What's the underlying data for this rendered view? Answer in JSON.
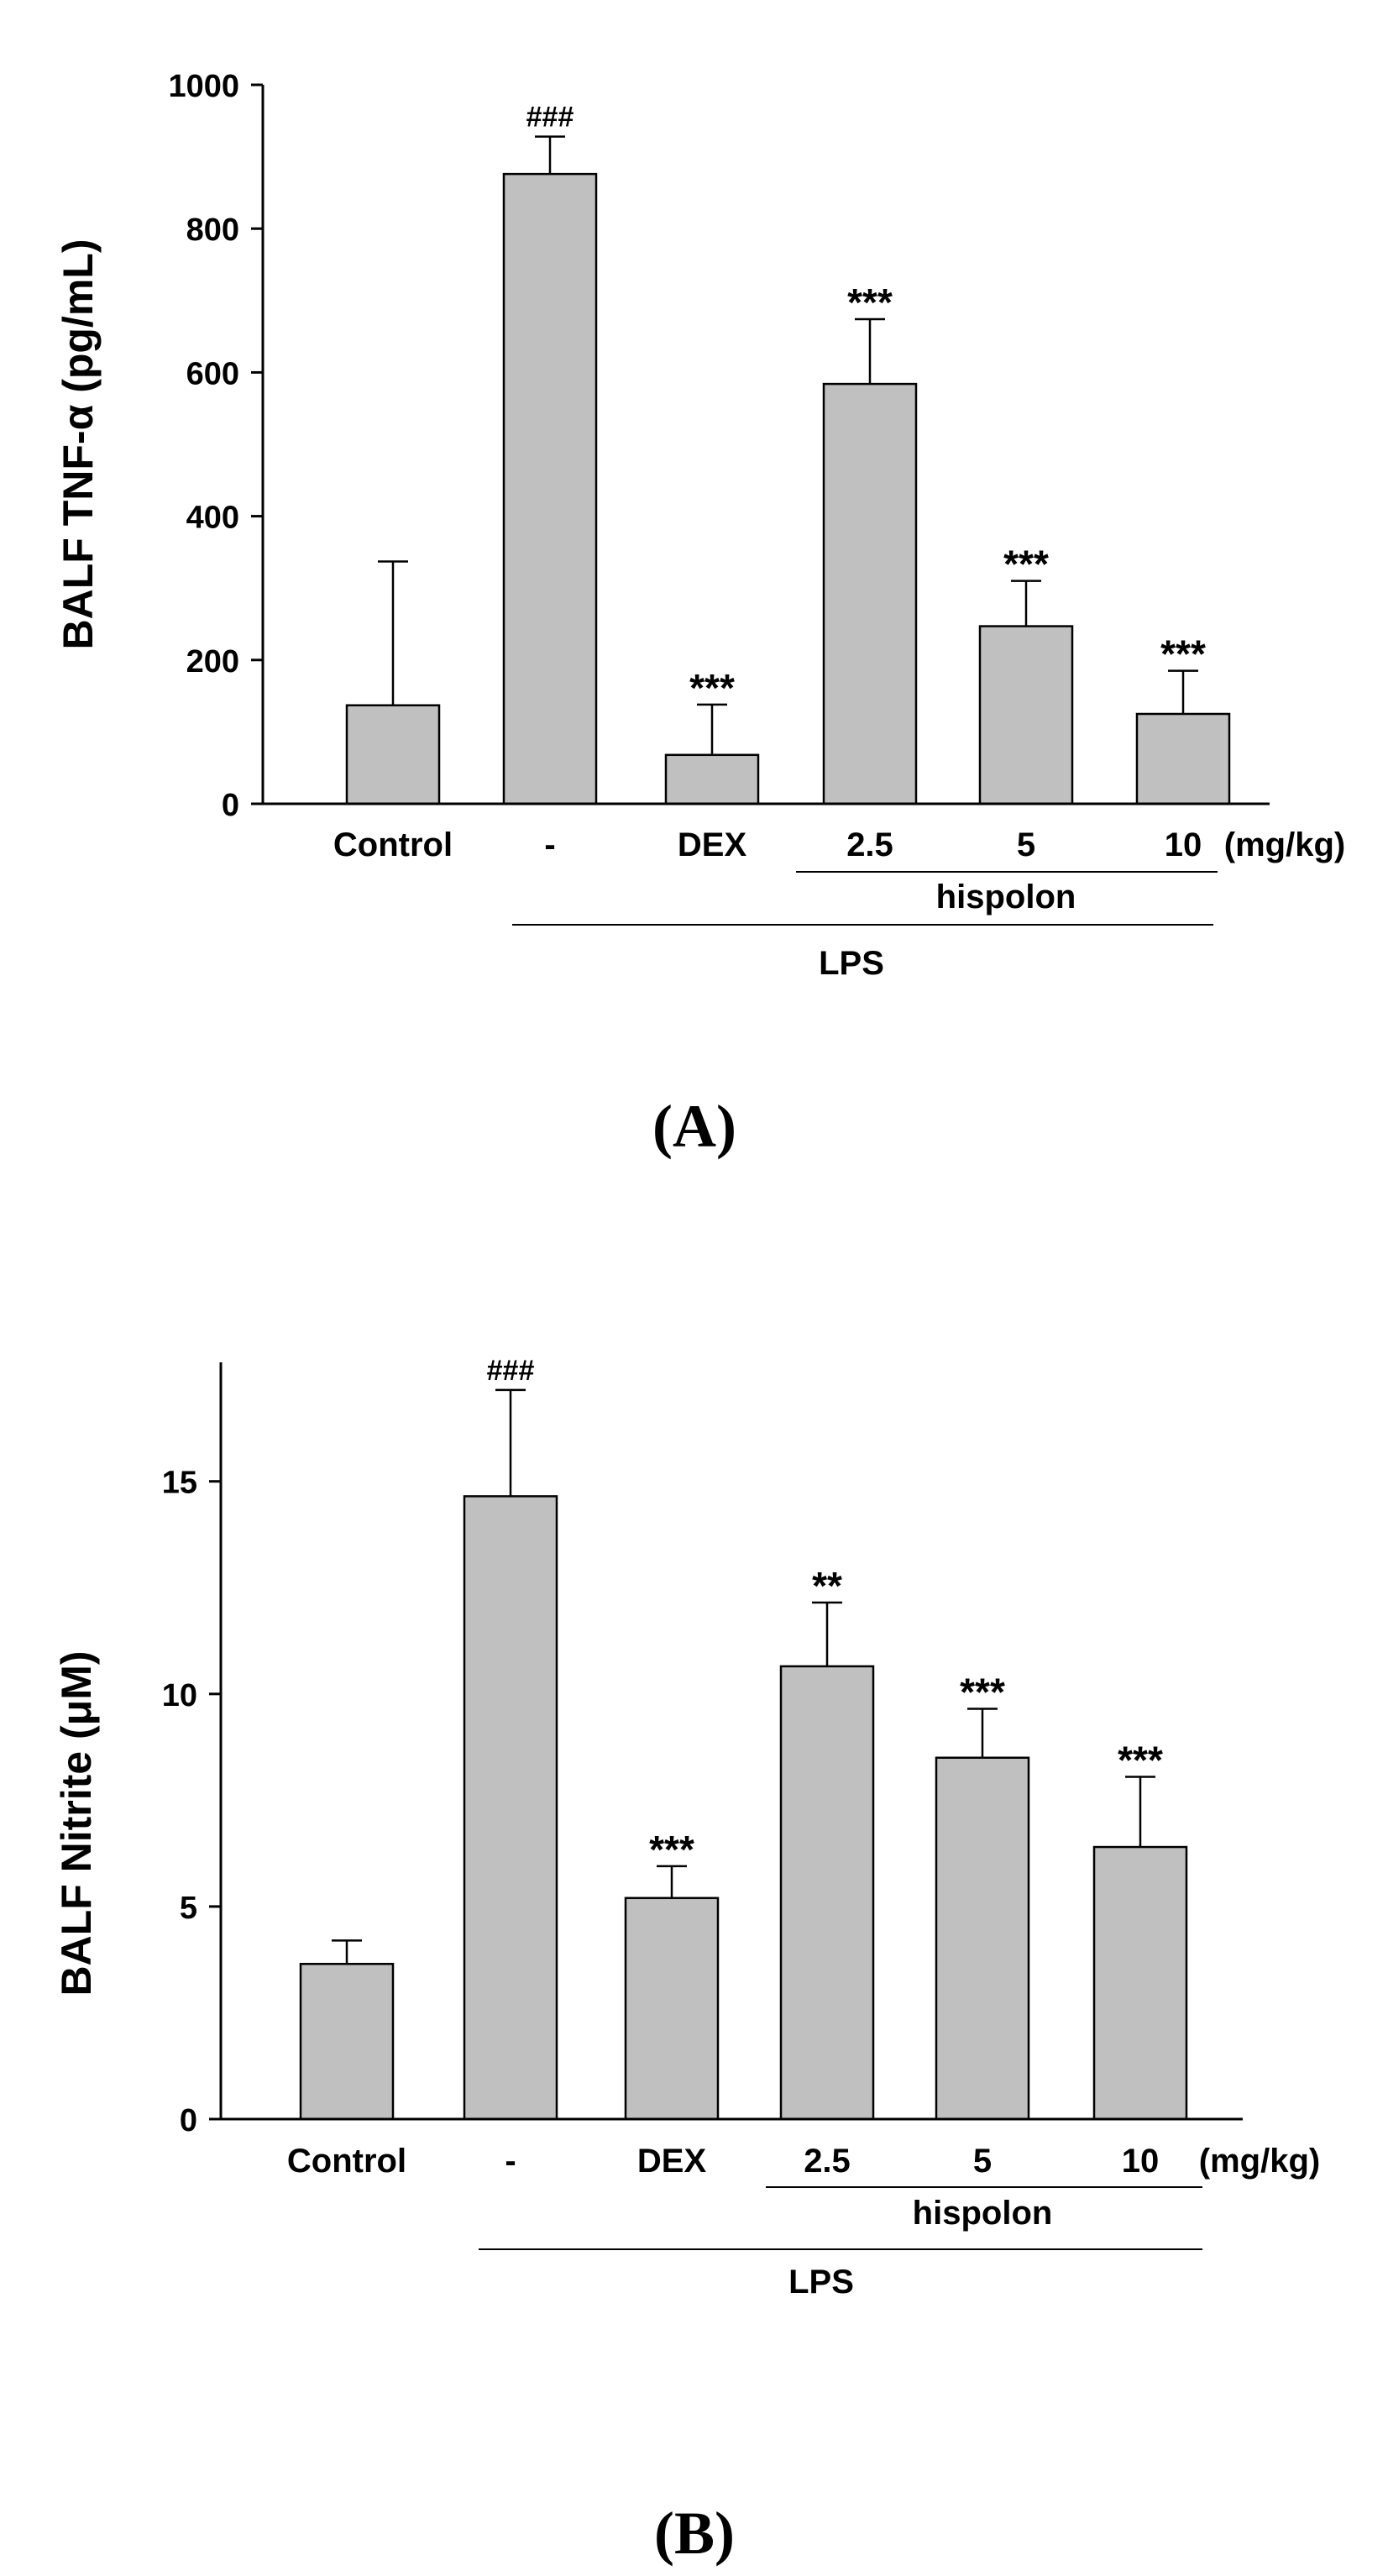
{
  "chart_data": [
    {
      "type": "bar",
      "panel_label": "(A)",
      "ylabel": "BALF TNF-α (pg/mL)",
      "ylim": [
        0,
        1000
      ],
      "yticks": [
        0,
        200,
        400,
        600,
        800,
        1000
      ],
      "categories": [
        "Control",
        "-",
        "DEX",
        "2.5",
        "5",
        "10"
      ],
      "values": [
        137,
        876,
        68,
        584,
        247,
        125
      ],
      "errors": [
        200,
        52,
        70,
        90,
        63,
        60
      ],
      "annotations": [
        "",
        "###",
        "***",
        "***",
        "***",
        "***"
      ],
      "bar_color": "#c0c0c0",
      "unit_label": "(mg/kg)",
      "group_labels": {
        "hispolon": "hispolon",
        "lps": "LPS"
      }
    },
    {
      "type": "bar",
      "panel_label": "(B)",
      "ylabel": "BALF Nitrite (μM)",
      "ylim": [
        0,
        17.8
      ],
      "yticks": [
        0,
        5,
        10,
        15
      ],
      "categories": [
        "Control",
        "-",
        "DEX",
        "2.5",
        "5",
        "10"
      ],
      "values": [
        3.65,
        14.65,
        5.2,
        10.65,
        8.5,
        6.4
      ],
      "errors": [
        0.55,
        2.5,
        0.75,
        1.5,
        1.15,
        1.65
      ],
      "annotations": [
        "",
        "###",
        "***",
        "**",
        "***",
        "***"
      ],
      "bar_color": "#c0c0c0",
      "unit_label": "(mg/kg)",
      "group_labels": {
        "hispolon": "hispolon",
        "lps": "LPS"
      }
    }
  ]
}
